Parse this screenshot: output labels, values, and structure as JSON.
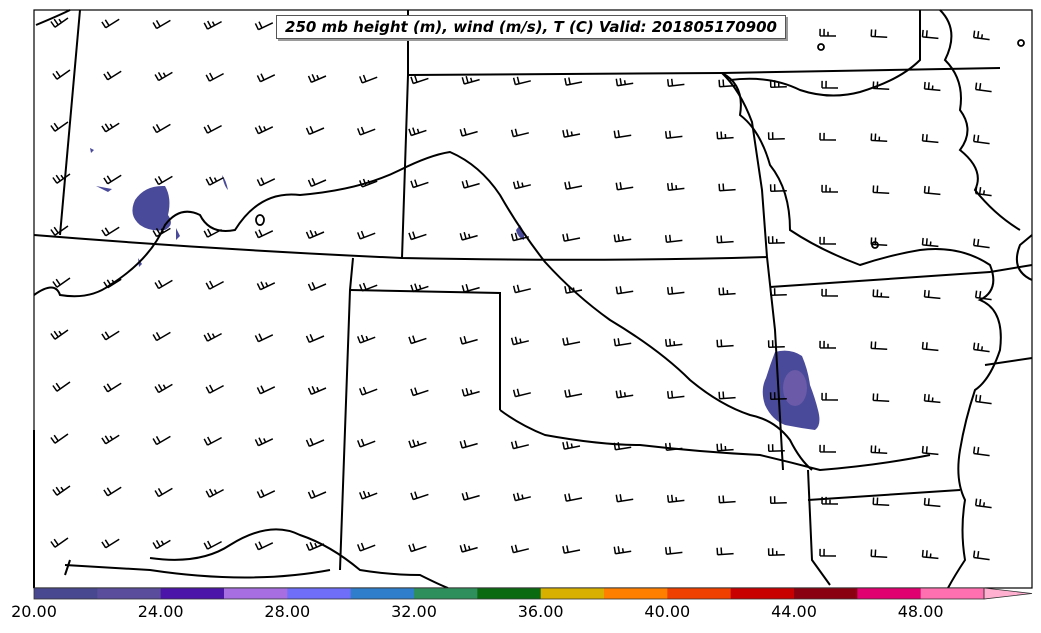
{
  "title": "250 mb height (m), wind (m/s), T (C) Valid: 201805170900",
  "colorbar": {
    "colors": [
      "#484890",
      "#5a4e9c",
      "#4a15a8",
      "#a66ee0",
      "#6e6ef8",
      "#2f7ecc",
      "#2f8f5c",
      "#0a6a10",
      "#d8b000",
      "#ff8000",
      "#f04000",
      "#c80000",
      "#8a0010",
      "#e00070",
      "#ff70b0",
      "#ffb0d0"
    ],
    "tick_labels": [
      "20.00",
      "24.00",
      "28.00",
      "32.00",
      "36.00",
      "40.00",
      "44.00",
      "48.00"
    ],
    "range": [
      20,
      52
    ],
    "extend": "max"
  },
  "shading_color": "#4a4a9a",
  "map": {
    "projection": "Lambert conformal",
    "region": "Southern Great Plains (Colorado, Kansas, Missouri, New Mexico, Oklahoma, Texas, Arkansas)"
  }
}
